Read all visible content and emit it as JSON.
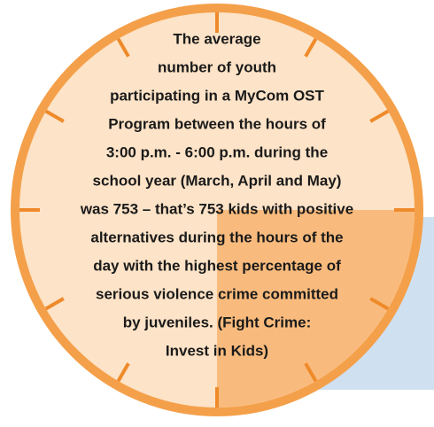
{
  "text_lines": [
    "The average",
    "number of youth",
    "participating in a MyCom OST",
    "Program between the hours of",
    "3:00 p.m. - 6:00 p.m. during the",
    "school year (March, April and May)",
    "was 753 – that’s 753 kids with positive",
    "alternatives during the hours of the",
    "day with the highest percentage of",
    "serious violence crime committed",
    "by juveniles. (Fight Crime:",
    "Invest in Kids)"
  ]
}
